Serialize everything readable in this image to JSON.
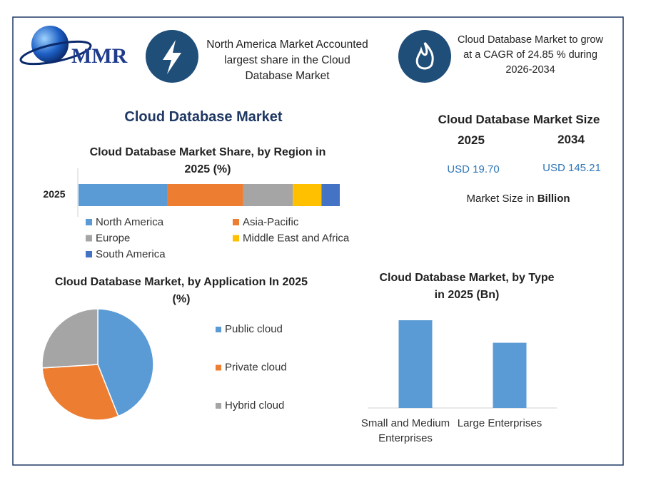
{
  "logo": "MMR",
  "cards": [
    {
      "text": "North America Market Accounted largest share in the Cloud Database Market"
    },
    {
      "text": "Cloud Database Market to grow at a CAGR of 24.85 % during 2026-2034"
    }
  ],
  "main_title": "Cloud Database Market",
  "market_size": {
    "title": "Cloud Database Market Size",
    "years": [
      "2025",
      "2034"
    ],
    "values": [
      "USD 19.70",
      "USD 145.21"
    ],
    "note_prefix": "Market Size in",
    "note_unit": "Billion"
  },
  "chart_data": [
    {
      "type": "stacked_bar",
      "title": "Cloud Database Market Share, by Region in 2025 (%)",
      "categories": [
        "2025"
      ],
      "series": [
        {
          "name": "North America",
          "color": "#5b9bd5",
          "values": [
            34
          ]
        },
        {
          "name": "Asia-Pacific",
          "color": "#ed7d31",
          "values": [
            29
          ]
        },
        {
          "name": "Europe",
          "color": "#a5a5a5",
          "values": [
            19
          ]
        },
        {
          "name": "Middle East and Africa",
          "color": "#ffc000",
          "values": [
            11
          ]
        },
        {
          "name": "South America",
          "color": "#4472c4",
          "values": [
            7
          ]
        }
      ]
    },
    {
      "type": "pie",
      "title": "Cloud Database Market, by Application In 2025 (%)",
      "categories": [
        "Public cloud",
        "Private cloud",
        "Hybrid cloud"
      ],
      "values": [
        44,
        30,
        26
      ],
      "colors": [
        "#5b9bd5",
        "#ed7d31",
        "#a5a5a5"
      ]
    },
    {
      "type": "bar",
      "title": "Cloud Database Market, by Type in 2025 (Bn)",
      "categories": [
        "Small and Medium Enterprises",
        "Large Enterprises"
      ],
      "values": [
        11.3,
        8.4
      ],
      "color": "#5b9bd5"
    }
  ]
}
